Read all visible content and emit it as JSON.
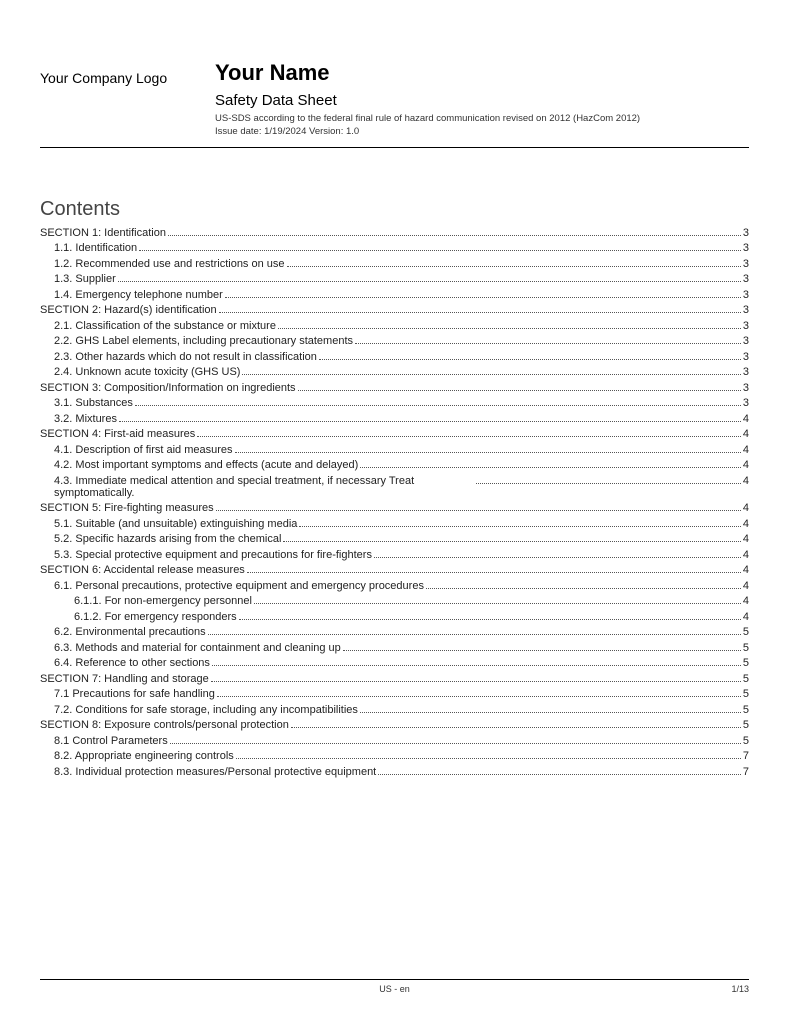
{
  "header": {
    "logo": "Your Company Logo",
    "title": "Your Name",
    "subtitle": "Safety Data Sheet",
    "meta1": "US-SDS according to the federal final rule of hazard communication revised on 2012 (HazCom 2012)",
    "meta2": "Issue date: 1/19/2024   Version: 1.0"
  },
  "contents_title": "Contents",
  "toc": [
    {
      "label": "SECTION 1: Identification",
      "page": "3",
      "level": 1
    },
    {
      "label": "1.1. Identification",
      "page": "3",
      "level": 2
    },
    {
      "label": "1.2. Recommended use and restrictions on use",
      "page": "3",
      "level": 2
    },
    {
      "label": "1.3. Supplier",
      "page": "3",
      "level": 2
    },
    {
      "label": "1.4. Emergency telephone number",
      "page": "3",
      "level": 2
    },
    {
      "label": "SECTION 2: Hazard(s) identification",
      "page": "3",
      "level": 1
    },
    {
      "label": "2.1. Classification of the substance or mixture",
      "page": "3",
      "level": 2
    },
    {
      "label": "2.2. GHS Label elements, including precautionary statements",
      "page": "3",
      "level": 2
    },
    {
      "label": "2.3. Other hazards which do not result in classification",
      "page": "3",
      "level": 2
    },
    {
      "label": "2.4. Unknown acute toxicity (GHS US)",
      "page": "3",
      "level": 2
    },
    {
      "label": "SECTION 3: Composition/Information on ingredients",
      "page": "3",
      "level": 1
    },
    {
      "label": "3.1. Substances",
      "page": "3",
      "level": 2
    },
    {
      "label": "3.2. Mixtures",
      "page": "4",
      "level": 2
    },
    {
      "label": "SECTION 4: First-aid measures",
      "page": "4",
      "level": 1
    },
    {
      "label": "4.1. Description of first aid measures",
      "page": "4",
      "level": 2
    },
    {
      "label": "4.2. Most important symptoms and effects (acute and delayed)",
      "page": "4",
      "level": 2
    },
    {
      "label": "4.3. Immediate medical attention and special treatment, if necessary Treat symptomatically.",
      "page": "4",
      "level": 2,
      "wrap": true
    },
    {
      "label": "SECTION 5: Fire-fighting measures",
      "page": "4",
      "level": 1
    },
    {
      "label": "5.1. Suitable (and unsuitable) extinguishing media",
      "page": "4",
      "level": 2
    },
    {
      "label": "5.2. Specific hazards arising from the chemical",
      "page": "4",
      "level": 2
    },
    {
      "label": "5.3. Special protective equipment and precautions for fire-fighters",
      "page": "4",
      "level": 2
    },
    {
      "label": "SECTION 6: Accidental release measures",
      "page": "4",
      "level": 1
    },
    {
      "label": "6.1. Personal precautions, protective equipment and emergency procedures",
      "page": "4",
      "level": 2
    },
    {
      "label": "6.1.1. For non-emergency personnel",
      "page": "4",
      "level": 3
    },
    {
      "label": "6.1.2. For emergency responders",
      "page": "4",
      "level": 3
    },
    {
      "label": "6.2. Environmental precautions",
      "page": "5",
      "level": 2
    },
    {
      "label": "6.3. Methods and material for containment and cleaning up",
      "page": "5",
      "level": 2
    },
    {
      "label": "6.4. Reference to other sections",
      "page": "5",
      "level": 2
    },
    {
      "label": "SECTION 7: Handling and storage",
      "page": "5",
      "level": 1
    },
    {
      "label": "7.1 Precautions for safe handling",
      "page": "5",
      "level": 2
    },
    {
      "label": "7.2. Conditions for safe storage, including any incompatibilities",
      "page": "5",
      "level": 2
    },
    {
      "label": "SECTION 8: Exposure controls/personal protection",
      "page": "5",
      "level": 1
    },
    {
      "label": "8.1 Control Parameters",
      "page": "5",
      "level": 2
    },
    {
      "label": "8.2. Appropriate engineering controls",
      "page": "7",
      "level": 2
    },
    {
      "label": "8.3. Individual protection measures/Personal protective equipment",
      "page": "7",
      "level": 2
    }
  ],
  "footer": {
    "center": "US - en",
    "right": "1/13"
  }
}
